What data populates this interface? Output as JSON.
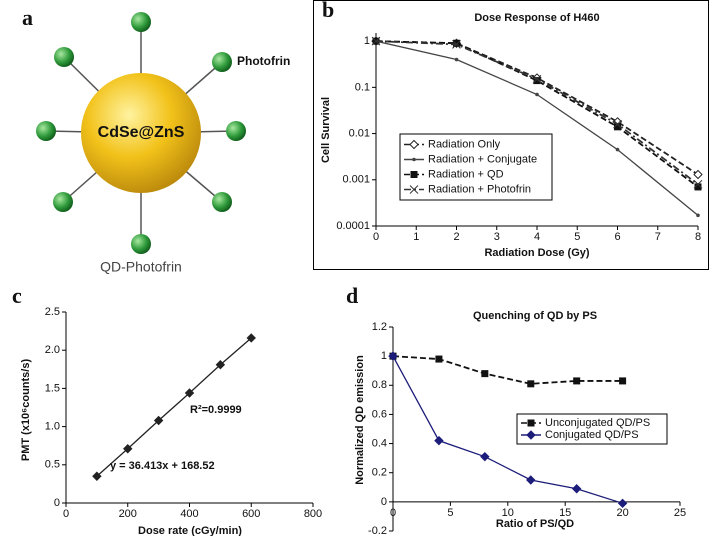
{
  "diagram": {
    "panel_label": "a",
    "core_label": "CdSe@ZnS",
    "ligand_label": "Photofrin",
    "caption": "QD-Photofrin"
  },
  "chart_data": [
    {
      "panel_label": "b",
      "type": "line",
      "title": "Dose Response of H460",
      "x_label": "Radiation Dose (Gy)",
      "y_label": "Cell Survival",
      "x": [
        0,
        2,
        4,
        6,
        8
      ],
      "xlim": [
        0,
        8
      ],
      "xticks": [
        0,
        1,
        2,
        3,
        4,
        5,
        6,
        7,
        8
      ],
      "ylim": [
        0.0001,
        1.5
      ],
      "yticks": [
        1,
        0.1,
        0.01,
        0.001,
        0.0001
      ],
      "yscale": "log",
      "legend": "lower left",
      "series": [
        {
          "name": "Radiation Only",
          "color": "#222222",
          "marker": "open-diamond",
          "dash": "dashed",
          "values": [
            1,
            0.9,
            0.16,
            0.018,
            0.0013
          ]
        },
        {
          "name": "Radiation + Conjugate",
          "color": "#444444",
          "marker": "dot",
          "dash": "solid",
          "values": [
            1,
            0.4,
            0.07,
            0.0045,
            0.00017
          ]
        },
        {
          "name": "Radiation + QD",
          "color": "#111111",
          "marker": "square",
          "dash": "dashed",
          "values": [
            1,
            0.9,
            0.14,
            0.014,
            0.0007
          ]
        },
        {
          "name": "Radiation + Photofrin",
          "color": "#333333",
          "marker": "cross",
          "dash": "dashdot",
          "values": [
            1,
            0.85,
            0.15,
            0.016,
            0.0008
          ]
        }
      ]
    },
    {
      "panel_label": "c",
      "type": "line",
      "x_label": "Dose rate (cGy/min)",
      "y_label": "PMT (x10⁶counts/s)",
      "annotations": [
        "R²=0.9999",
        "y = 36.413x + 168.52"
      ],
      "x": [
        100,
        200,
        300,
        400,
        500,
        600
      ],
      "xlim": [
        0,
        800
      ],
      "xticks": [
        0,
        200,
        400,
        600,
        800
      ],
      "ylim": [
        0,
        2.5
      ],
      "yticks": [
        0,
        0.5,
        {
          "value": 1,
          "label": "1.0"
        },
        1.5,
        {
          "value": 2,
          "label": "2.0"
        },
        2.5
      ],
      "series": [
        {
          "color": "#222222",
          "marker": "diamond",
          "dash": "solid",
          "values": [
            0.35,
            0.71,
            1.08,
            1.44,
            1.81,
            2.16
          ]
        }
      ]
    },
    {
      "panel_label": "d",
      "type": "line",
      "title": "Quenching of QD by PS",
      "x_label": "Ratio of PS/QD",
      "y_label": "Normalized QD emission",
      "x": [
        0,
        4,
        8,
        12,
        16,
        20
      ],
      "xlim": [
        0,
        25
      ],
      "xticks": [
        0,
        5,
        10,
        15,
        20,
        25
      ],
      "ylim": [
        -0.2,
        1.2
      ],
      "yticks": [
        -0.2,
        0,
        0.2,
        0.4,
        0.6,
        0.8,
        1,
        1.2
      ],
      "legend": "center right",
      "series": [
        {
          "name": "Unconjugated QD/PS",
          "color": "#111111",
          "marker": "square",
          "dash": "dashed",
          "values": [
            1,
            0.98,
            0.88,
            0.81,
            0.83,
            0.83
          ]
        },
        {
          "name": "Conjugated QD/PS",
          "color": "#1c1c7a",
          "marker": "diamond",
          "dash": "solid",
          "values": [
            1,
            0.42,
            0.31,
            0.15,
            0.09,
            -0.01
          ]
        }
      ]
    }
  ]
}
